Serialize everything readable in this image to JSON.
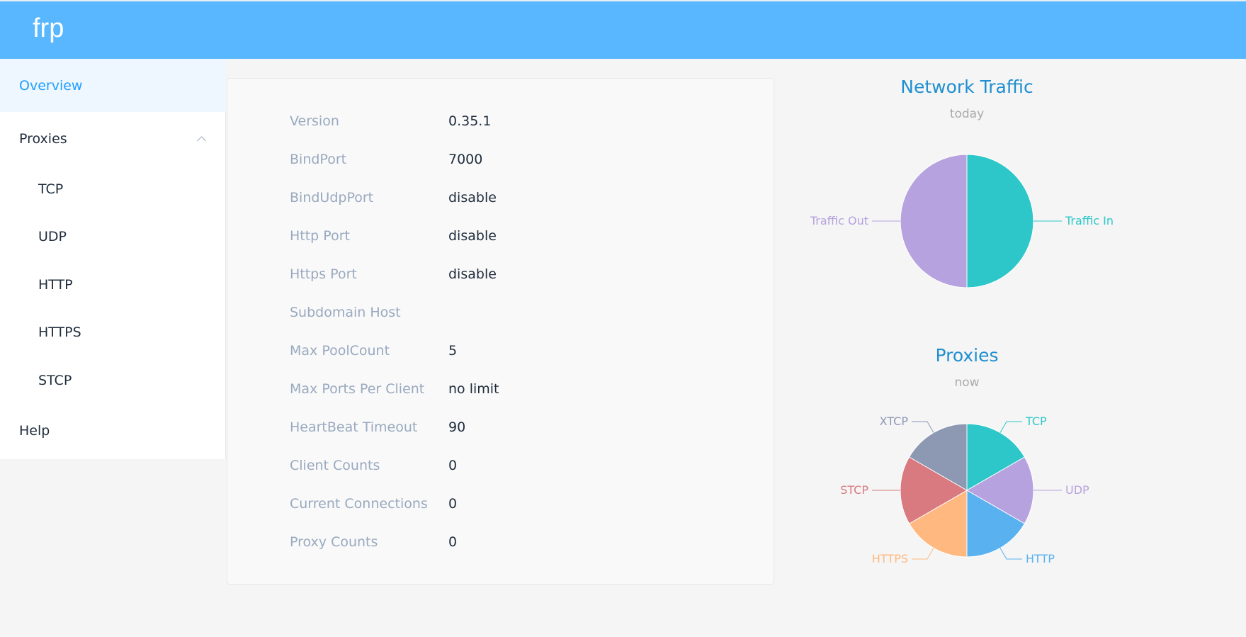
{
  "app": {
    "logo": "frp"
  },
  "sidebar": {
    "overview": "Overview",
    "proxies": "Proxies",
    "proxy_items": [
      "TCP",
      "UDP",
      "HTTP",
      "HTTPS",
      "STCP"
    ],
    "help": "Help"
  },
  "server_info": [
    {
      "key": "Version",
      "value": "0.35.1"
    },
    {
      "key": "BindPort",
      "value": "7000"
    },
    {
      "key": "BindUdpPort",
      "value": "disable"
    },
    {
      "key": "Http Port",
      "value": "disable"
    },
    {
      "key": "Https Port",
      "value": "disable"
    },
    {
      "key": "Subdomain Host",
      "value": ""
    },
    {
      "key": "Max PoolCount",
      "value": "5"
    },
    {
      "key": "Max Ports Per Client",
      "value": "no limit"
    },
    {
      "key": "HeartBeat Timeout",
      "value": "90"
    },
    {
      "key": "Client Counts",
      "value": "0"
    },
    {
      "key": "Current Connections",
      "value": "0"
    },
    {
      "key": "Proxy Counts",
      "value": "0"
    }
  ],
  "colors": {
    "header": "#58b7ff",
    "accent": "#20a0ff",
    "traffic_in": "#2ec7c9",
    "traffic_out": "#b6a2de"
  },
  "chart_data": [
    {
      "type": "pie",
      "title": "Network Traffic",
      "subtitle": "today",
      "slices": [
        {
          "name": "Traffic In",
          "value": 1,
          "color": "#2ec7c9"
        },
        {
          "name": "Traffic Out",
          "value": 1,
          "color": "#b6a2de"
        }
      ]
    },
    {
      "type": "pie",
      "title": "Proxies",
      "subtitle": "now",
      "slices": [
        {
          "name": "TCP",
          "value": 1,
          "color": "#2ec7c9"
        },
        {
          "name": "UDP",
          "value": 1,
          "color": "#b6a2de"
        },
        {
          "name": "HTTP",
          "value": 1,
          "color": "#5ab1ef"
        },
        {
          "name": "HTTPS",
          "value": 1,
          "color": "#ffb980"
        },
        {
          "name": "STCP",
          "value": 1,
          "color": "#d87a80"
        },
        {
          "name": "XTCP",
          "value": 1,
          "color": "#8d98b3"
        }
      ]
    }
  ]
}
